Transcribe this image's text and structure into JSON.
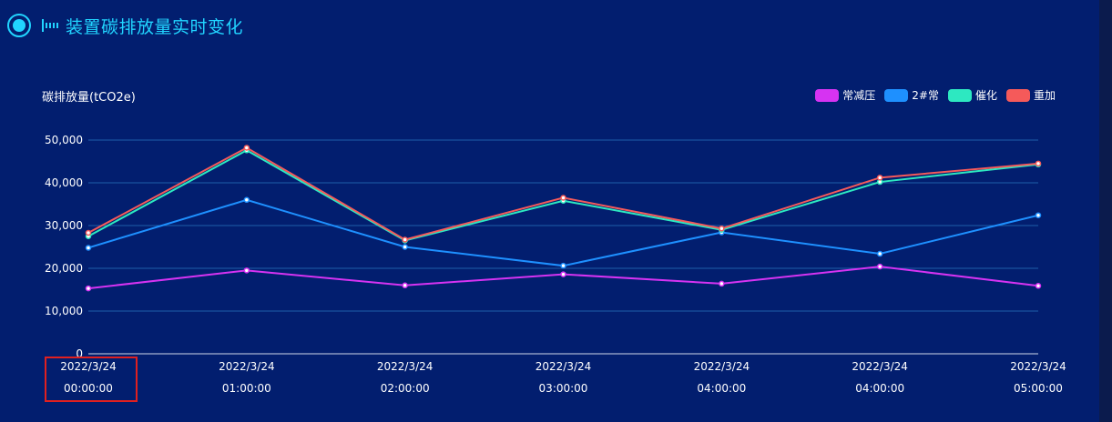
{
  "header": {
    "title": "装置碳排放量实时变化"
  },
  "colors": {
    "background": "#021e6f",
    "accent": "#21d4ff",
    "gridline": "#1f5ea8"
  },
  "chart_data": {
    "type": "line",
    "title": "装置碳排放量实时变化",
    "ylabel": "碳排放量(tCO2e)",
    "xlabel": "",
    "ylim": [
      0,
      50000
    ],
    "yticks": [
      0,
      10000,
      20000,
      30000,
      40000,
      50000
    ],
    "ytick_labels": [
      "0",
      "10,000",
      "20,000",
      "30,000",
      "40,000",
      "50,000"
    ],
    "categories": [
      [
        "2022/3/24",
        "00:00:00"
      ],
      [
        "2022/3/24",
        "01:00:00"
      ],
      [
        "2022/3/24",
        "02:00:00"
      ],
      [
        "2022/3/24",
        "03:00:00"
      ],
      [
        "2022/3/24",
        "04:00:00"
      ],
      [
        "2022/3/24",
        "04:00:00"
      ],
      [
        "2022/3/24",
        "05:00:00"
      ]
    ],
    "grid": true,
    "legend_position": "top-right",
    "series": [
      {
        "name": "常减压",
        "color": "#d633f2",
        "values": [
          15300,
          19500,
          16000,
          18600,
          16400,
          20400,
          15900
        ]
      },
      {
        "name": "2#常",
        "color": "#1e90ff",
        "values": [
          24800,
          36000,
          25000,
          20600,
          28400,
          23400,
          32400
        ]
      },
      {
        "name": "催化",
        "color": "#2de8c1",
        "values": [
          27500,
          47600,
          26500,
          35800,
          29000,
          40200,
          44300
        ]
      },
      {
        "name": "重加",
        "color": "#f55a5a",
        "values": [
          28300,
          48200,
          26700,
          36500,
          29300,
          41200,
          44500
        ]
      }
    ]
  }
}
